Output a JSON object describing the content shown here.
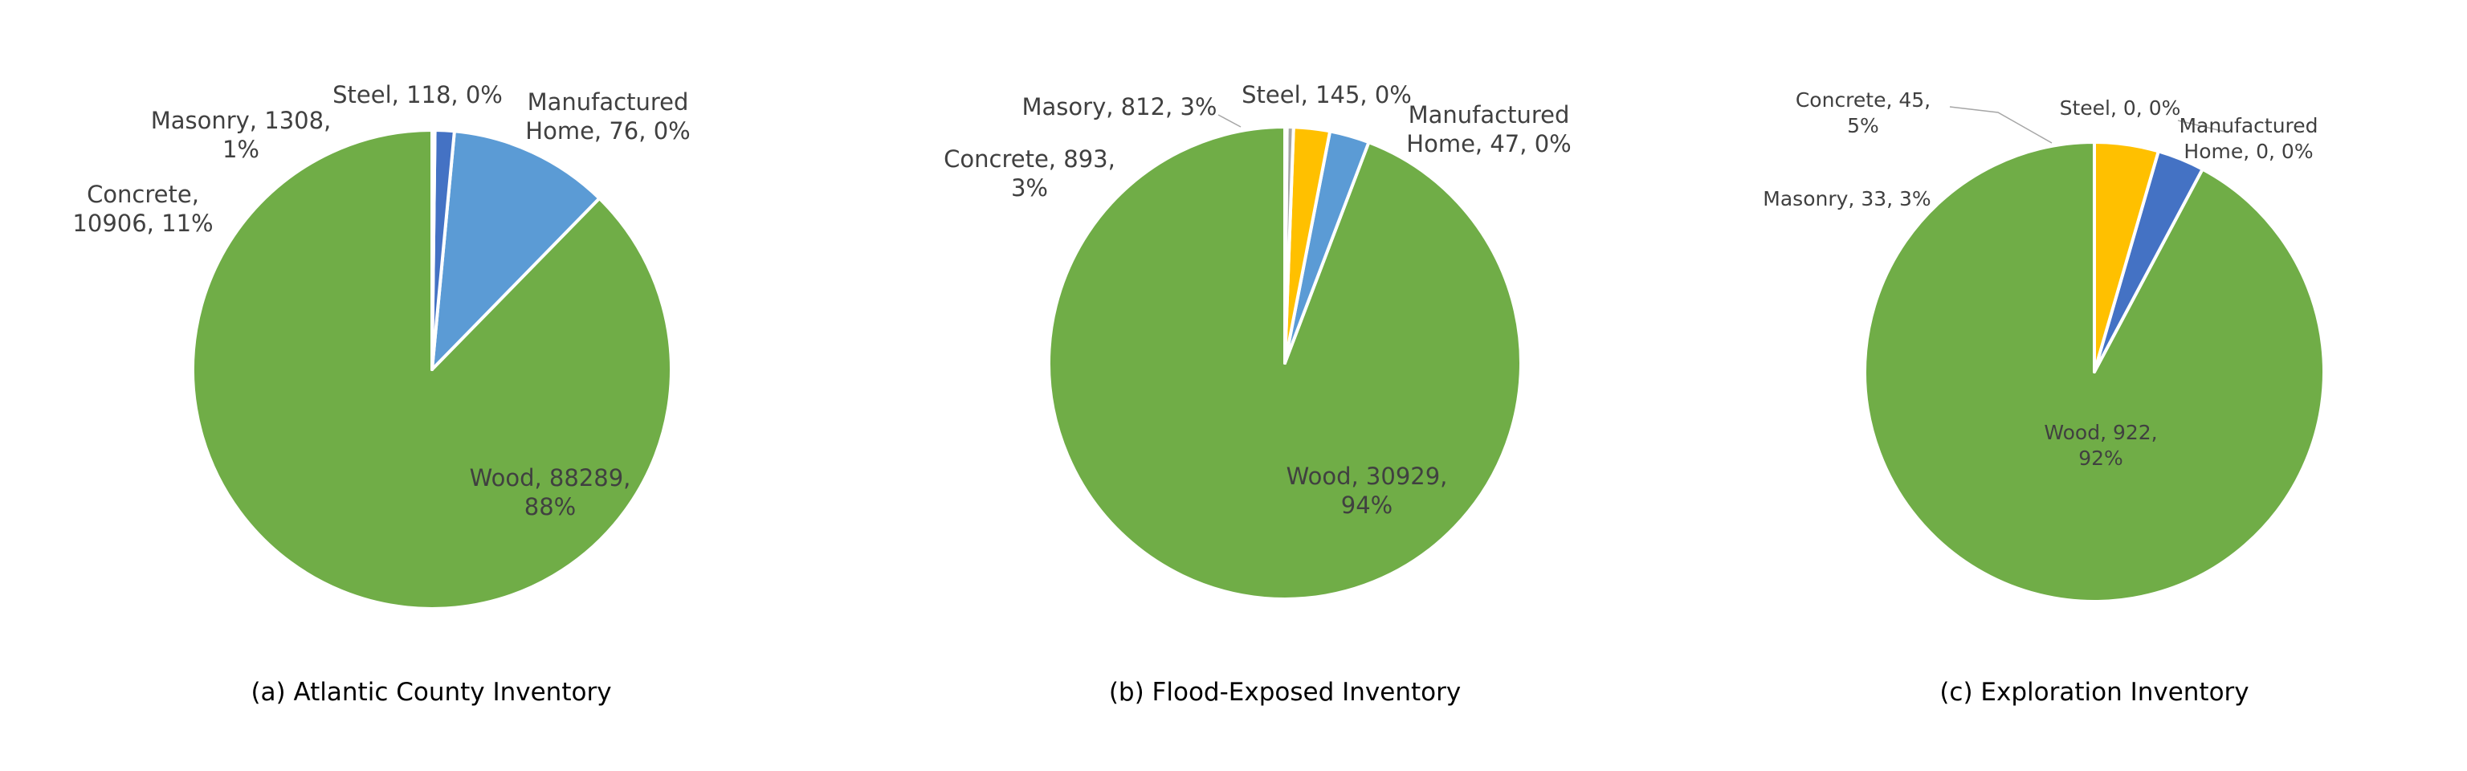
{
  "chart_data": [
    {
      "type": "pie",
      "title": "(a) Atlantic County Inventory",
      "slices": [
        {
          "name": "Wood",
          "value": 88289,
          "label_lines": [
            "Wood, 88289,",
            "88%"
          ],
          "color": "#70AD47"
        },
        {
          "name": "Concrete",
          "value": 10906,
          "label_lines": [
            "Concrete,",
            "10906, 11%"
          ],
          "color": "#5B9BD5"
        },
        {
          "name": "Masonry",
          "value": 1308,
          "label_lines": [
            "Masonry, 1308,",
            "1%"
          ],
          "color": "#4472C4"
        },
        {
          "name": "Steel",
          "value": 118,
          "label_lines": [
            "Steel, 118, 0%"
          ],
          "color": "#FFC000"
        },
        {
          "name": "Manufactured Home",
          "value": 76,
          "label_lines": [
            "Manufactured",
            "Home, 76, 0%"
          ],
          "color": "#A5A5A5"
        }
      ]
    },
    {
      "type": "pie",
      "title": "(b) Flood-Exposed Inventory",
      "slices": [
        {
          "name": "Wood",
          "value": 30929,
          "label_lines": [
            "Wood, 30929,",
            "94%"
          ],
          "color": "#70AD47"
        },
        {
          "name": "Concrete",
          "value": 893,
          "label_lines": [
            "Concrete, 893,",
            "3%"
          ],
          "color": "#5B9BD5"
        },
        {
          "name": "Masory",
          "value": 812,
          "label_lines": [
            "Masory, 812, 3%"
          ],
          "color": "#FFC000"
        },
        {
          "name": "Steel",
          "value": 145,
          "label_lines": [
            "Steel, 145, 0%"
          ],
          "color": "#A5A5A5"
        },
        {
          "name": "Manufactured Home",
          "value": 47,
          "label_lines": [
            "Manufactured",
            "Home, 47, 0%"
          ],
          "color": "#4472C4"
        }
      ]
    },
    {
      "type": "pie",
      "title": "(c) Exploration Inventory",
      "slices": [
        {
          "name": "Wood",
          "value": 922,
          "label_lines": [
            "Wood, 922,",
            "92%"
          ],
          "color": "#70AD47"
        },
        {
          "name": "Masonry",
          "value": 33,
          "label_lines": [
            "Masonry, 33, 3%"
          ],
          "color": "#4472C4"
        },
        {
          "name": "Concrete",
          "value": 45,
          "label_lines": [
            "Concrete, 45,",
            "5%"
          ],
          "color": "#FFC000"
        },
        {
          "name": "Steel",
          "value": 0,
          "label_lines": [
            "Steel, 0, 0%"
          ],
          "color": "#A5A5A5"
        },
        {
          "name": "Manufactured Home",
          "value": 0,
          "label_lines": [
            "Manufactured",
            "Home, 0, 0%"
          ],
          "color": "#5B9BD5"
        }
      ]
    }
  ]
}
